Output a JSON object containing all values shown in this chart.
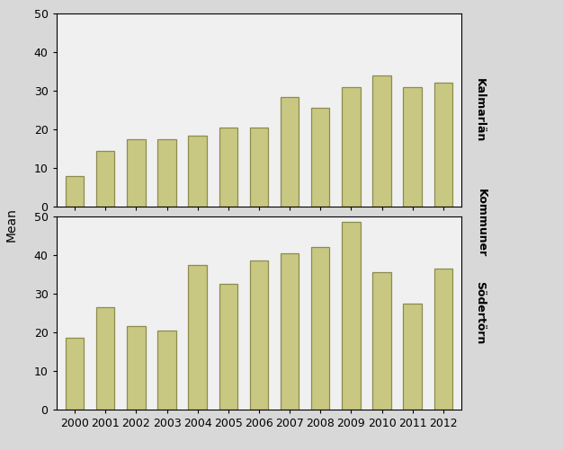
{
  "years": [
    2000,
    2001,
    2002,
    2003,
    2004,
    2005,
    2006,
    2007,
    2008,
    2009,
    2010,
    2011,
    2012
  ],
  "kalmarlän": [
    8,
    14.5,
    17.5,
    17.5,
    18.5,
    20.5,
    20.5,
    28.5,
    25.5,
    31,
    34,
    31,
    32
  ],
  "södertörn": [
    18.5,
    26.5,
    21.5,
    20.5,
    37.5,
    32.5,
    38.5,
    40.5,
    42,
    48.5,
    35.5,
    27.5,
    36.5
  ],
  "bar_color": "#c8c882",
  "bar_edge_color": "#8c8c50",
  "plot_background": "#f0f0f0",
  "figure_background": "#d8d8d8",
  "ylim": [
    0,
    50
  ],
  "yticks": [
    0,
    10,
    20,
    30,
    40,
    50
  ],
  "ylabel": "Mean",
  "right_label_top": "Kalmarlän",
  "right_label_middle": "Kommuner",
  "right_label_bottom": "Södertörn",
  "fontsize_labels": 9,
  "fontsize_ylabel": 10
}
